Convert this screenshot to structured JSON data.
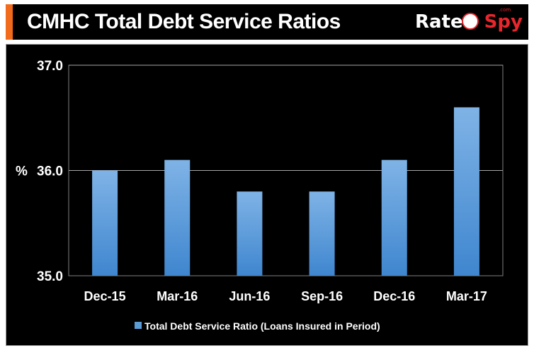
{
  "header": {
    "title": "CMHC Total Debt Service Ratios",
    "accent_color": "#f26b1d",
    "background": "#000000"
  },
  "logo": {
    "text_part1": "Rate",
    "text_part2": "Spy",
    "suffix": ".com",
    "badge_icon": "spy-face-icon",
    "colors": {
      "primary": "#ffffff",
      "secondary": "#e8262c"
    }
  },
  "chart_data": {
    "type": "bar",
    "title": "",
    "xlabel": "",
    "ylabel": "%",
    "categories": [
      "Dec-15",
      "Mar-16",
      "Jun-16",
      "Sep-16",
      "Dec-16",
      "Mar-17"
    ],
    "series": [
      {
        "name": "Total Debt Service Ratio (Loans Insured in Period)",
        "values": [
          36.0,
          36.1,
          35.8,
          35.8,
          36.1,
          36.6
        ],
        "color": "#5b9bd5"
      }
    ],
    "ylim": [
      35.0,
      37.0
    ],
    "yticks": [
      35.0,
      36.0,
      37.0
    ],
    "ytick_labels": [
      "35.0",
      "36.0",
      "37.0"
    ],
    "grid": true,
    "legend_position": "bottom-center",
    "background": "#000000",
    "text_color": "#ffffff"
  }
}
